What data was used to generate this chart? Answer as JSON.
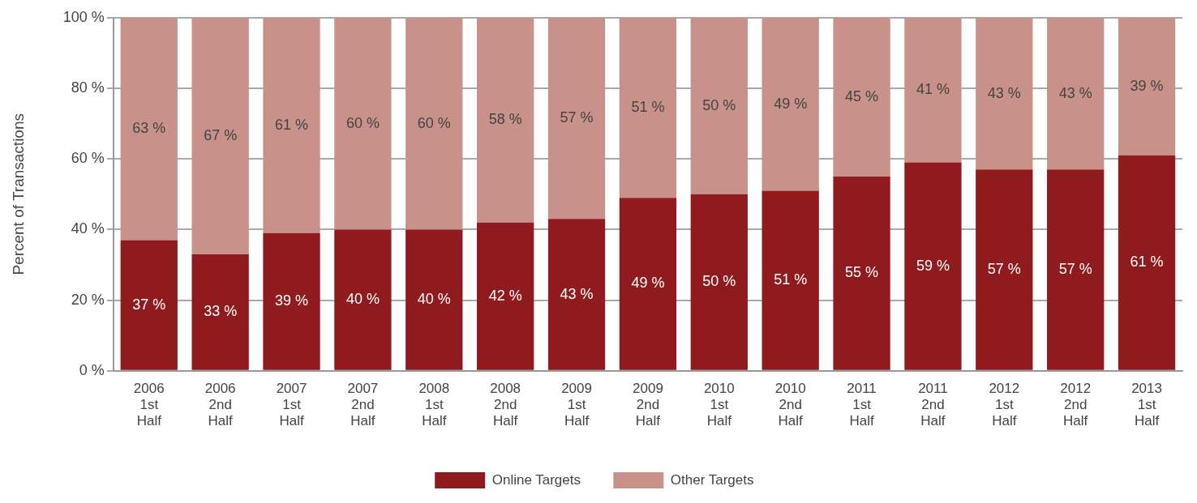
{
  "chart_data": {
    "type": "bar",
    "stacked": true,
    "ylabel": "Percent of Transactions",
    "categories": [
      "2006\n1st\nHalf",
      "2006\n2nd\nHalf",
      "2007\n1st\nHalf",
      "2007\n2nd\nHalf",
      "2008\n1st\nHalf",
      "2008\n2nd\nHalf",
      "2009\n1st\nHalf",
      "2009\n2nd\nHalf",
      "2010\n1st\nHalf",
      "2010\n2nd\nHalf",
      "2011\n1st\nHalf",
      "2011\n2nd\nHalf",
      "2012\n1st\nHalf",
      "2012\n2nd\nHalf",
      "2013\n1st\nHalf"
    ],
    "series": [
      {
        "name": "Online Targets",
        "color": "#8f1b1f",
        "values": [
          37,
          33,
          39,
          40,
          40,
          42,
          43,
          49,
          50,
          51,
          55,
          59,
          57,
          57,
          61
        ],
        "value_labels": [
          "37 %",
          "33 %",
          "39 %",
          "40 %",
          "40 %",
          "42 %",
          "43 %",
          "49 %",
          "50 %",
          "51 %",
          "55 %",
          "59 %",
          "57 %",
          "57 %",
          "61 %"
        ]
      },
      {
        "name": "Other Targets",
        "color": "#c89189",
        "values": [
          63,
          67,
          61,
          60,
          60,
          58,
          57,
          51,
          50,
          49,
          45,
          41,
          43,
          43,
          39
        ],
        "value_labels": [
          "63 %",
          "67 %",
          "61 %",
          "60 %",
          "60 %",
          "58 %",
          "57 %",
          "51 %",
          "50 %",
          "49 %",
          "45 %",
          "41 %",
          "43 %",
          "43 %",
          "39 %"
        ]
      }
    ],
    "ylim": [
      0,
      100
    ],
    "yticks": [
      {
        "value": 0,
        "label": "0 %"
      },
      {
        "value": 20,
        "label": "20 %"
      },
      {
        "value": 40,
        "label": "40 %"
      },
      {
        "value": 60,
        "label": "60 %"
      },
      {
        "value": 80,
        "label": "80 %"
      },
      {
        "value": 100,
        "label": "100 %"
      }
    ],
    "grid": "y",
    "legend": "bottom"
  }
}
